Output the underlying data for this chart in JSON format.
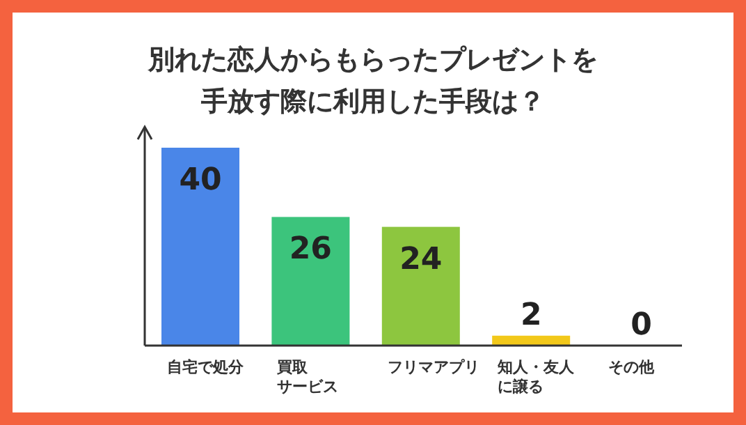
{
  "chart_data": {
    "type": "bar",
    "title": "別れた恋人からもらったプレゼントを手放す際に利用した手段は？",
    "categories": [
      "自宅で処分",
      "買取サービス",
      "フリマアプリ",
      "知人・友人に譲る",
      "その他"
    ],
    "values": [
      40,
      26,
      24,
      2,
      0
    ],
    "colors": [
      "#4a86e8",
      "#3cc47c",
      "#8dc63f",
      "#f2c81a",
      "#999999"
    ],
    "data_labels": true
  }
}
